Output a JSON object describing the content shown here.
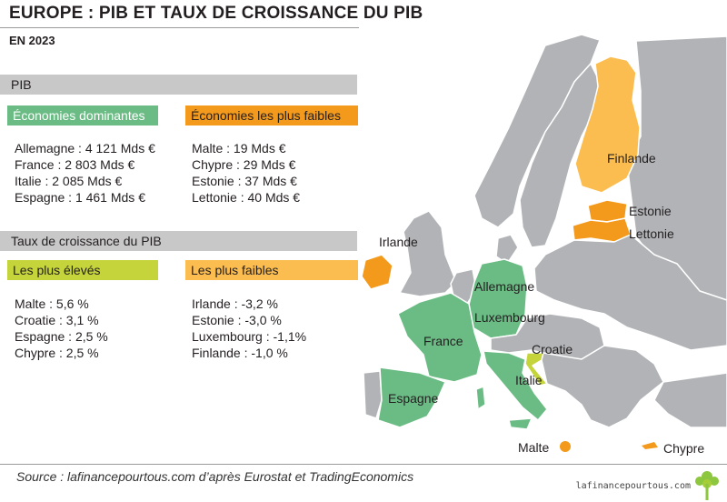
{
  "header": {
    "title": "EUROPE : PIB ET TAUX DE CROISSANCE DU PIB",
    "subtitle": "EN 2023"
  },
  "colors": {
    "green": "#6bbc84",
    "orange": "#f39a1c",
    "light_orange": "#fbbd4f",
    "lime": "#c5d43a",
    "band_gray": "#c8c8c9",
    "grey_country": "#b1b3b6"
  },
  "pib": {
    "band_label": "PIB",
    "dominant": {
      "label": "Économies dominantes",
      "items": [
        "Allemagne : 4 121 Mds €",
        "France : 2 803 Mds €",
        "Italie : 2 085 Mds €",
        "Espagne : 1 461 Mds €"
      ]
    },
    "weakest": {
      "label": "Économies les plus faibles",
      "items": [
        "Malte : 19 Mds €",
        "Chypre : 29 Mds €",
        "Estonie : 37 Mds €",
        "Lettonie : 40 Mds €"
      ]
    }
  },
  "growth": {
    "band_label": "Taux de croissance du PIB",
    "highest": {
      "label": "Les plus élevés",
      "items": [
        "Malte : 5,6 %",
        "Croatie : 3,1 %",
        "Espagne : 2,5 %",
        "Chypre : 2,5 %"
      ]
    },
    "lowest": {
      "label": "Les plus faibles",
      "items": [
        "Irlande : -3,2 %",
        "Estonie : -3,0 %",
        "Luxembourg : -1,1%",
        "Finlande : -1,0 %"
      ]
    }
  },
  "map": {
    "labels": {
      "finlande": "Finlande",
      "estonie": "Estonie",
      "lettonie": "Lettonie",
      "irlande": "Irlande",
      "allemagne": "Allemagne",
      "luxembourg": "Luxembourg",
      "france": "France",
      "croatie": "Croatie",
      "italie": "Italie",
      "espagne": "Espagne",
      "malte": "Malte",
      "chypre": "Chypre"
    }
  },
  "footer": {
    "source": "Source : lafinancepourtous.com d’après Eurostat et TradingEconomics",
    "brand": "lafinancepourtous.com"
  }
}
